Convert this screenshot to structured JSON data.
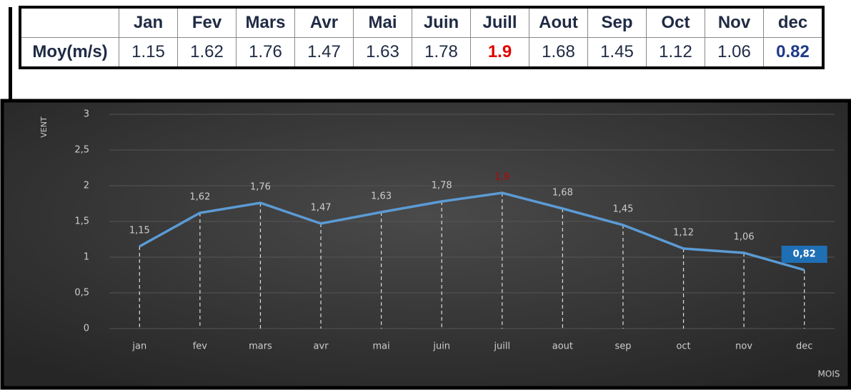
{
  "table": {
    "columns": [
      "Jan",
      "Fev",
      "Mars",
      "Avr",
      "Mai",
      "Juin",
      "Juill",
      "Aout",
      "Sep",
      "Oct",
      "Nov",
      "dec"
    ],
    "row_label": "Moy(m/s)",
    "values": [
      1.15,
      1.62,
      1.76,
      1.47,
      1.63,
      1.78,
      1.9,
      1.68,
      1.45,
      1.12,
      1.06,
      0.82
    ]
  },
  "chart_data": {
    "type": "line",
    "categories": [
      "jan",
      "fev",
      "mars",
      "avr",
      "mai",
      "juin",
      "juill",
      "aout",
      "sep",
      "oct",
      "nov",
      "dec"
    ],
    "values": [
      1.15,
      1.62,
      1.76,
      1.47,
      1.63,
      1.78,
      1.9,
      1.68,
      1.45,
      1.12,
      1.06,
      0.82
    ],
    "value_labels": [
      "1,15",
      "1,62",
      "1,76",
      "1,47",
      "1,63",
      "1,78",
      "1,9",
      "1,68",
      "1,45",
      "1,12",
      "1,06",
      "0,82"
    ],
    "color": "#5b9bd5",
    "y_label": "VENT",
    "x_label": "MOIS",
    "ylim": [
      0,
      3
    ],
    "yticks": [
      0,
      {
        "value": 0.5,
        "label": "0,5"
      },
      1,
      {
        "value": 1.5,
        "label": "1,5"
      },
      2,
      {
        "value": 2.5,
        "label": "2,5"
      },
      3
    ],
    "grid": true
  }
}
